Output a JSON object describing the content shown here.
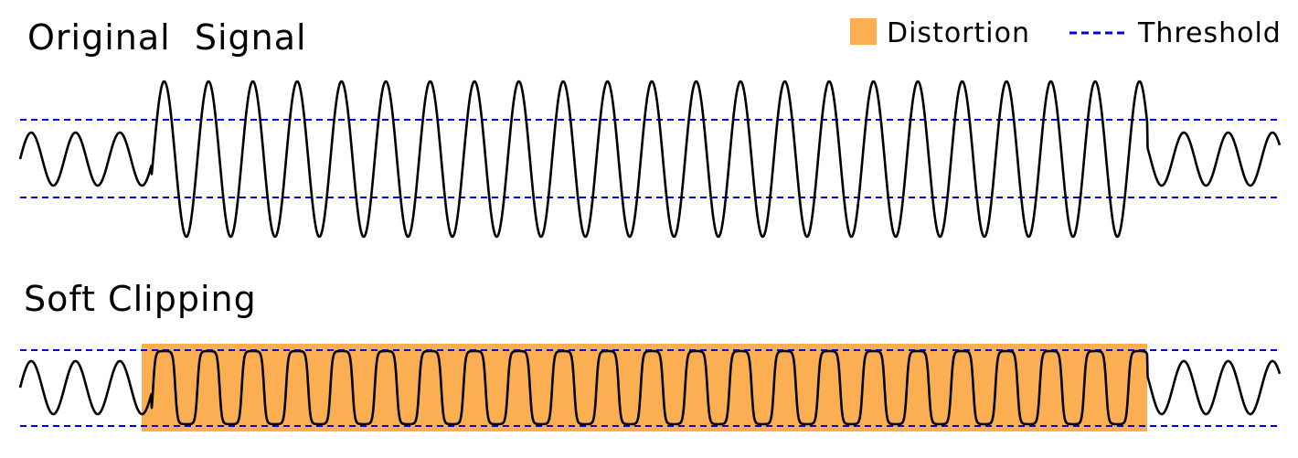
{
  "panels": [
    {
      "id": "original",
      "title": "Original  Signal"
    },
    {
      "id": "soft",
      "title": "Soft Clipping"
    }
  ],
  "legend": {
    "distortion": {
      "label": "Distortion",
      "color": "#fbae52"
    },
    "threshold": {
      "label": "Threshold",
      "color": "#0000dd"
    }
  },
  "colors": {
    "signal": "#000000",
    "threshold": "#0000dd",
    "distortion": "#fbae52"
  }
}
